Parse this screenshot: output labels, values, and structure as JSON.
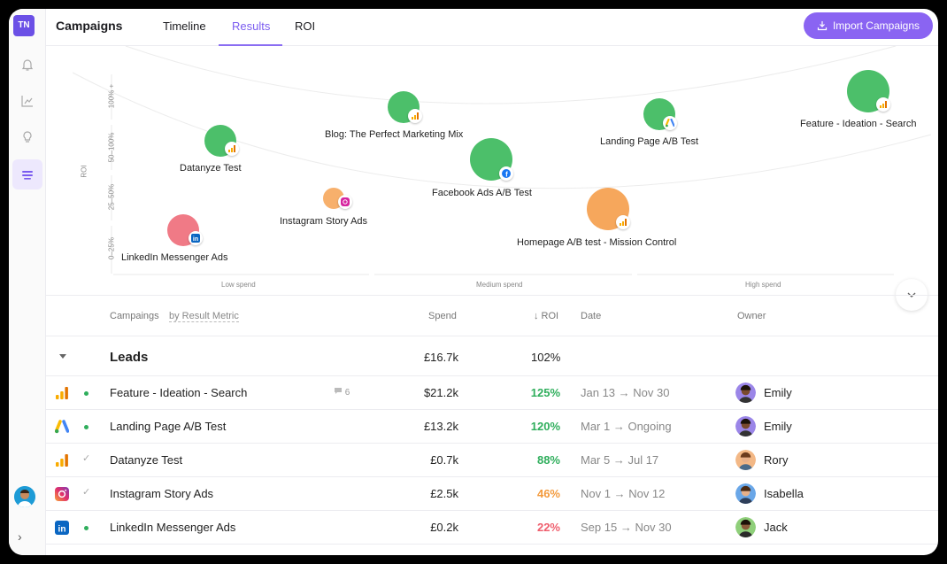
{
  "sidebar": {
    "logo": "TN",
    "icons": [
      "bell-icon",
      "chart-icon",
      "lightbulb-icon",
      "campaigns-icon"
    ],
    "expand": "›"
  },
  "header": {
    "title": "Campaigns",
    "tabs": [
      {
        "label": "Timeline"
      },
      {
        "label": "Results",
        "active": true
      },
      {
        "label": "ROI"
      }
    ],
    "import_label": "Import Campaigns"
  },
  "chart": {
    "ylabel": "ROI",
    "y_ticks": [
      "0–25%",
      "25–50%",
      "50–100%",
      "100% +"
    ],
    "x_ticks": [
      "Low spend",
      "Medium spend",
      "High spend"
    ],
    "bubbles": [
      {
        "label": "LinkedIn Messenger Ads",
        "spend_band": "Low spend",
        "roi_band": "0–25%",
        "color": "#f07a86",
        "badge": "linkedin"
      },
      {
        "label": "Datanyze Test",
        "spend_band": "Low spend",
        "roi_band": "50–100%",
        "color": "#4cbf6a",
        "badge": "analytics"
      },
      {
        "label": "Instagram Story Ads",
        "spend_band": "Low spend",
        "roi_band": "25–50%",
        "color": "#f6a75c",
        "badge": "instagram"
      },
      {
        "label": "Blog: The Perfect Marketing Mix",
        "spend_band": "Medium spend",
        "roi_band": "100% +",
        "color": "#4cbf6a",
        "badge": "analytics"
      },
      {
        "label": "Facebook Ads A/B Test",
        "spend_band": "Medium spend",
        "roi_band": "50–100%",
        "color": "#4cbf6a",
        "badge": "facebook"
      },
      {
        "label": "Homepage A/B test - Mission Control",
        "spend_band": "Medium spend",
        "roi_band": "25–50%",
        "color": "#f6a75c",
        "badge": "analytics"
      },
      {
        "label": "Landing Page A/B Test",
        "spend_band": "High spend",
        "roi_band": "100% +",
        "color": "#4cbf6a",
        "badge": "google-ads"
      },
      {
        "label": "Feature - Ideation - Search",
        "spend_band": "High spend",
        "roi_band": "100% +",
        "color": "#4cbf6a",
        "badge": "analytics"
      }
    ]
  },
  "table": {
    "headers": {
      "campaigns": "Campaings",
      "group_by": "by Result Metric",
      "spend": "Spend",
      "roi": "↓ ROI",
      "date": "Date",
      "owner": "Owner"
    },
    "group": {
      "name": "Leads",
      "spend": "£16.7k",
      "roi": "102%"
    },
    "rows": [
      {
        "icon": "analytics",
        "status": "dot",
        "name": "Feature - Ideation - Search",
        "comments": "6",
        "spend": "$21.2k",
        "roi": "125%",
        "roi_color": "#2fae5c",
        "start": "Jan 13",
        "end": "Nov 30",
        "owner": "Emily",
        "avatar_color": "#9b86e8"
      },
      {
        "icon": "google-ads",
        "status": "dot",
        "name": "Landing Page A/B Test",
        "comments": "",
        "spend": "£13.2k",
        "roi": "120%",
        "roi_color": "#2fae5c",
        "start": "Mar 1",
        "end": "Ongoing",
        "owner": "Emily",
        "avatar_color": "#9b86e8"
      },
      {
        "icon": "analytics",
        "status": "check",
        "name": "Datanyze Test",
        "comments": "",
        "spend": "£0.7k",
        "roi": "88%",
        "roi_color": "#2fae5c",
        "start": "Mar 5",
        "end": "Jul 17",
        "owner": "Rory",
        "avatar_color": "#f3b886"
      },
      {
        "icon": "instagram",
        "status": "check",
        "name": "Instagram Story Ads",
        "comments": "",
        "spend": "£2.5k",
        "roi": "46%",
        "roi_color": "#f39a3c",
        "start": "Nov 1",
        "end": "Nov 12",
        "owner": "Isabella",
        "avatar_color": "#6aa7e8"
      },
      {
        "icon": "linkedin",
        "status": "dot",
        "name": "LinkedIn Messenger Ads",
        "comments": "",
        "spend": "£0.2k",
        "roi": "22%",
        "roi_color": "#ef5d6c",
        "start": "Sep 15",
        "end": "Nov 30",
        "owner": "Jack",
        "avatar_color": "#8fcf7a"
      }
    ]
  },
  "colors": {
    "accent": "#8a64f2",
    "green": "#2fae5c",
    "orange": "#f39a3c",
    "red": "#ef5d6c"
  }
}
